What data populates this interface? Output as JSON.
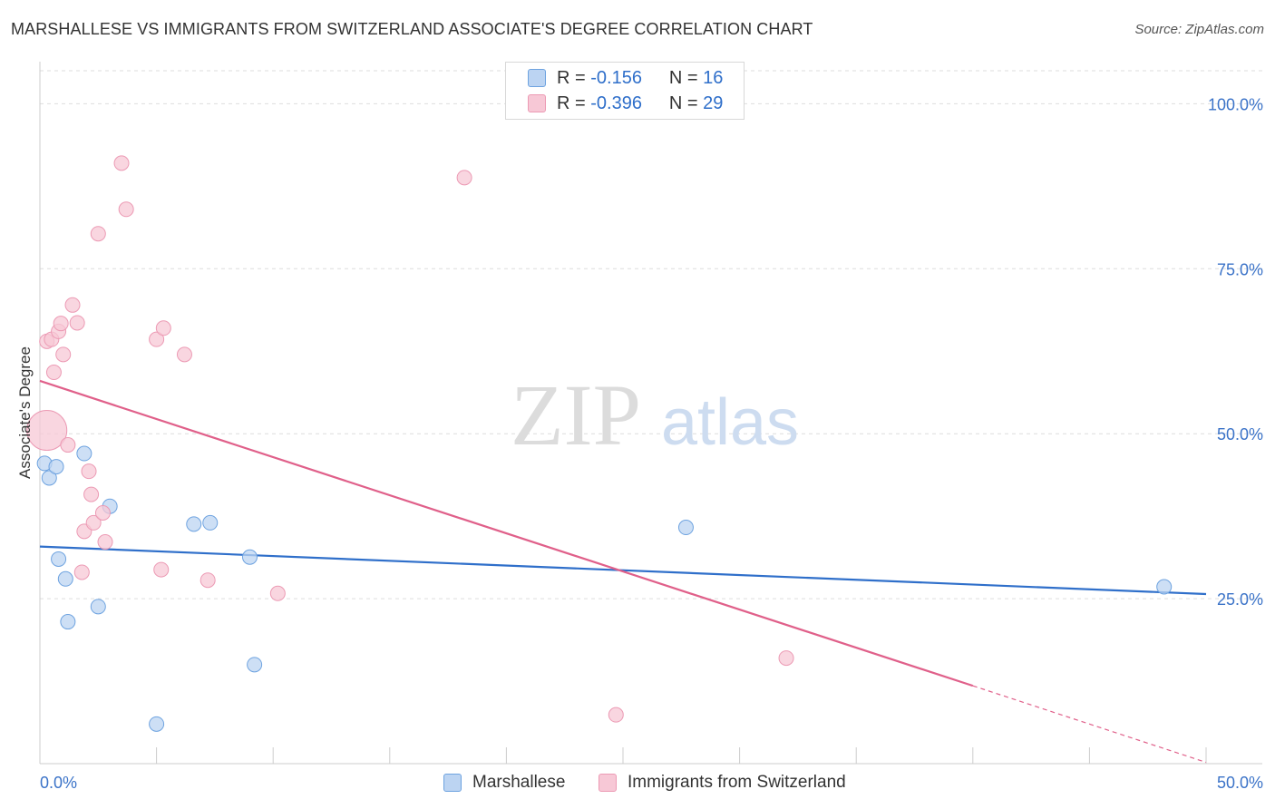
{
  "title": "MARSHALLESE VS IMMIGRANTS FROM SWITZERLAND ASSOCIATE'S DEGREE CORRELATION CHART",
  "source": "Source: ZipAtlas.com",
  "watermark": {
    "zip": "ZIP",
    "atlas": "atlas"
  },
  "legend_top": [
    {
      "r_label": "R =",
      "r_value": "-0.156",
      "n_label": "N =",
      "n_value": "16"
    },
    {
      "r_label": "R =",
      "r_value": "-0.396",
      "n_label": "N =",
      "n_value": "29"
    }
  ],
  "chart_data": {
    "type": "scatter",
    "title": "MARSHALLESE VS IMMIGRANTS FROM SWITZERLAND ASSOCIATE'S DEGREE CORRELATION CHART",
    "xlabel": "",
    "ylabel": "Associate's Degree",
    "xlim": [
      0,
      50
    ],
    "ylim": [
      0,
      105
    ],
    "x_tick_labels": [
      "0.0%",
      "50.0%"
    ],
    "y_ticks": [
      25,
      50,
      75,
      100
    ],
    "y_tick_labels": [
      "25.0%",
      "50.0%",
      "75.0%",
      "100.0%"
    ],
    "grid": true,
    "legend": [
      "Marshallese",
      "Immigrants from Switzerland"
    ],
    "series": [
      {
        "name": "Marshallese",
        "color": "#6ea3e0",
        "fill": "#bcd4f2",
        "line_color": "#2f6fca",
        "points": [
          [
            0.2,
            45.5
          ],
          [
            0.4,
            43.3
          ],
          [
            0.7,
            45.0
          ],
          [
            1.9,
            47.0
          ],
          [
            0.8,
            31.0
          ],
          [
            1.1,
            28.0
          ],
          [
            1.2,
            21.5
          ],
          [
            2.5,
            23.8
          ],
          [
            3.0,
            39.0
          ],
          [
            6.6,
            36.3
          ],
          [
            7.3,
            36.5
          ],
          [
            9.0,
            31.3
          ],
          [
            9.2,
            15.0
          ],
          [
            5.0,
            6.0
          ],
          [
            27.7,
            35.8
          ],
          [
            48.2,
            26.8
          ]
        ],
        "trend": {
          "x": [
            0,
            50
          ],
          "y": [
            32.9,
            25.7
          ]
        }
      },
      {
        "name": "Immigrants from Switzerland",
        "color": "#ec9ab4",
        "fill": "#f7c8d6",
        "line_color": "#e0608a",
        "points": [
          [
            0.3,
            50.5
          ],
          [
            0.3,
            64.0
          ],
          [
            0.5,
            64.3
          ],
          [
            0.6,
            59.3
          ],
          [
            0.8,
            65.5
          ],
          [
            0.9,
            66.7
          ],
          [
            1.0,
            62.0
          ],
          [
            1.2,
            48.3
          ],
          [
            1.4,
            69.5
          ],
          [
            1.6,
            66.8
          ],
          [
            1.8,
            29.0
          ],
          [
            1.9,
            35.2
          ],
          [
            2.1,
            44.3
          ],
          [
            2.2,
            40.8
          ],
          [
            2.3,
            36.5
          ],
          [
            2.5,
            80.3
          ],
          [
            2.7,
            38.0
          ],
          [
            2.8,
            33.6
          ],
          [
            3.5,
            91.0
          ],
          [
            3.7,
            84.0
          ],
          [
            5.0,
            64.3
          ],
          [
            5.2,
            29.4
          ],
          [
            5.3,
            66.0
          ],
          [
            6.2,
            62.0
          ],
          [
            7.2,
            27.8
          ],
          [
            10.2,
            25.8
          ],
          [
            18.2,
            88.8
          ],
          [
            24.7,
            7.4
          ],
          [
            32.0,
            16.0
          ]
        ],
        "trend": {
          "x": [
            0,
            40
          ],
          "y": [
            58.0,
            11.8
          ]
        },
        "trend_extension": {
          "x": [
            40,
            50
          ],
          "y": [
            11.8,
            0.2
          ]
        }
      }
    ]
  }
}
